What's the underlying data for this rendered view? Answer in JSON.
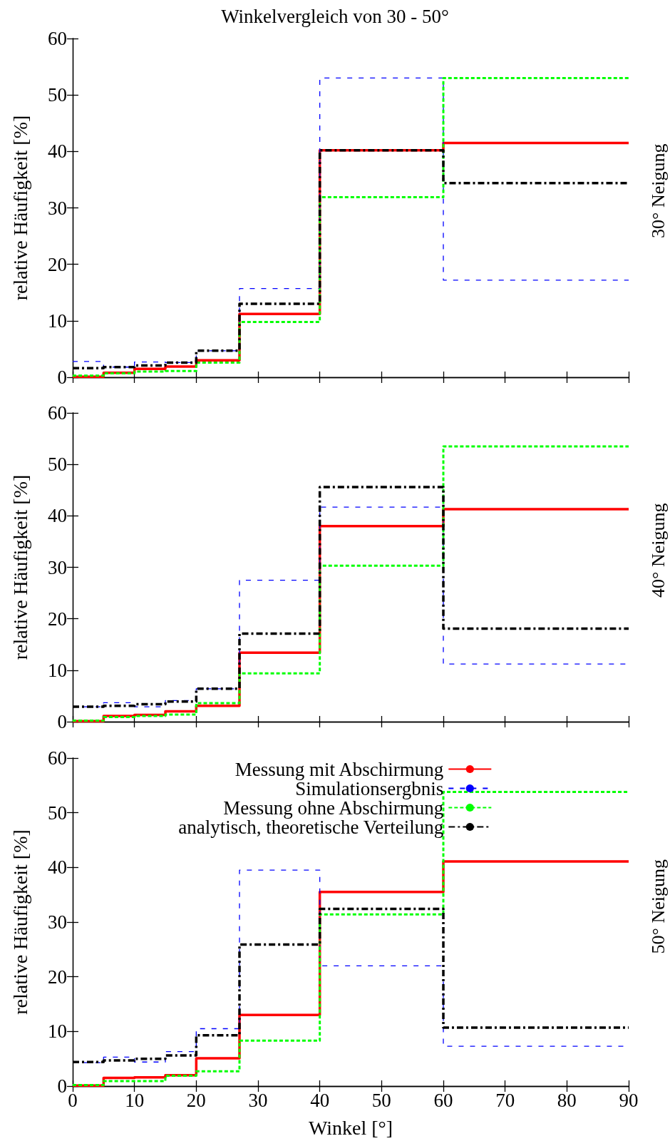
{
  "chart_data": [
    {
      "type": "histogram",
      "title": "Winkelvergleich von 30 - 50°",
      "ylabel": "relative Häufigkeit [%]",
      "annotations": [
        "30° Neigung"
      ],
      "bins": [
        0,
        5,
        10,
        15,
        20,
        27,
        40,
        60,
        90
      ],
      "xlim": [
        0,
        90
      ],
      "xticks": [
        0,
        10,
        20,
        30,
        40,
        50,
        60,
        70,
        80,
        90
      ],
      "ylim": [
        0,
        60
      ],
      "yticks": [
        0,
        10,
        20,
        30,
        40,
        50,
        60
      ],
      "tick_labels": "y",
      "legend": false,
      "grid": false,
      "series": [
        {
          "color": "#ff0000",
          "line_style": "solid",
          "values": [
            0.1,
            0.8,
            1.5,
            1.9,
            3.0,
            11.2,
            40.2,
            41.5
          ]
        },
        {
          "color": "#0000ff",
          "line_style": "dashed",
          "values": [
            2.8,
            1.8,
            2.7,
            2.6,
            4.7,
            15.7,
            53.0,
            17.2
          ]
        },
        {
          "color": "#00ff00",
          "line_style": "dotted",
          "values": [
            0.3,
            0.7,
            1.0,
            1.1,
            2.6,
            9.8,
            31.9,
            53.0
          ]
        },
        {
          "color": "#000000",
          "line_style": "dashdot",
          "values": [
            1.6,
            1.8,
            2.1,
            2.6,
            4.7,
            13.0,
            40.2,
            34.4
          ]
        }
      ]
    },
    {
      "type": "histogram",
      "ylabel": "relative Häufigkeit [%]",
      "annotations": [
        "40° Neigung"
      ],
      "bins": [
        0,
        5,
        10,
        15,
        20,
        27,
        40,
        60,
        90
      ],
      "xlim": [
        0,
        90
      ],
      "xticks": [
        0,
        10,
        20,
        30,
        40,
        50,
        60,
        70,
        80,
        90
      ],
      "ylim": [
        0,
        60
      ],
      "yticks": [
        0,
        10,
        20,
        30,
        40,
        50,
        60
      ],
      "tick_labels": "y",
      "legend": false,
      "grid": false,
      "series": [
        {
          "color": "#ff0000",
          "line_style": "solid",
          "values": [
            0.1,
            1.1,
            1.3,
            2.0,
            3.1,
            13.4,
            38.0,
            41.3
          ]
        },
        {
          "color": "#0000ff",
          "line_style": "dashed",
          "values": [
            2.9,
            3.7,
            2.9,
            4.1,
            6.4,
            27.5,
            41.7,
            11.2
          ]
        },
        {
          "color": "#00ff00",
          "line_style": "dotted",
          "values": [
            0.2,
            0.9,
            1.1,
            1.4,
            3.6,
            9.4,
            30.3,
            53.5
          ]
        },
        {
          "color": "#000000",
          "line_style": "dashdot",
          "values": [
            2.9,
            3.1,
            3.4,
            3.9,
            6.4,
            17.1,
            45.6,
            18.1
          ]
        }
      ]
    },
    {
      "type": "histogram",
      "xlabel": "Winkel [°]",
      "ylabel": "relative Häufigkeit [%]",
      "annotations": [
        "50° Neigung"
      ],
      "bins": [
        0,
        5,
        10,
        15,
        20,
        27,
        40,
        60,
        90
      ],
      "xlim": [
        0,
        90
      ],
      "xticks": [
        0,
        10,
        20,
        30,
        40,
        50,
        60,
        70,
        80,
        90
      ],
      "ylim": [
        0,
        60
      ],
      "yticks": [
        0,
        10,
        20,
        30,
        40,
        50,
        60
      ],
      "legend": "top",
      "grid": false,
      "series": [
        {
          "name": "Messung mit Abschirmung",
          "color": "#ff0000",
          "line_style": "solid",
          "values": [
            0.1,
            1.5,
            1.6,
            2.0,
            5.1,
            13.0,
            35.5,
            41.1
          ]
        },
        {
          "name": "Simulationsergbnis",
          "color": "#0000ff",
          "line_style": "dashed",
          "values": [
            4.3,
            5.3,
            4.4,
            6.3,
            10.5,
            39.5,
            22.0,
            7.3
          ]
        },
        {
          "name": "Messung ohne Abschirmung",
          "color": "#00ff00",
          "line_style": "dotted",
          "values": [
            0.2,
            0.9,
            0.9,
            1.9,
            2.7,
            8.3,
            31.4,
            53.8
          ]
        },
        {
          "name": "analytisch, theoretische Verteilung",
          "color": "#000000",
          "line_style": "dashdot",
          "values": [
            4.4,
            4.7,
            5.0,
            5.6,
            9.3,
            25.9,
            32.4,
            10.7
          ]
        }
      ]
    }
  ]
}
